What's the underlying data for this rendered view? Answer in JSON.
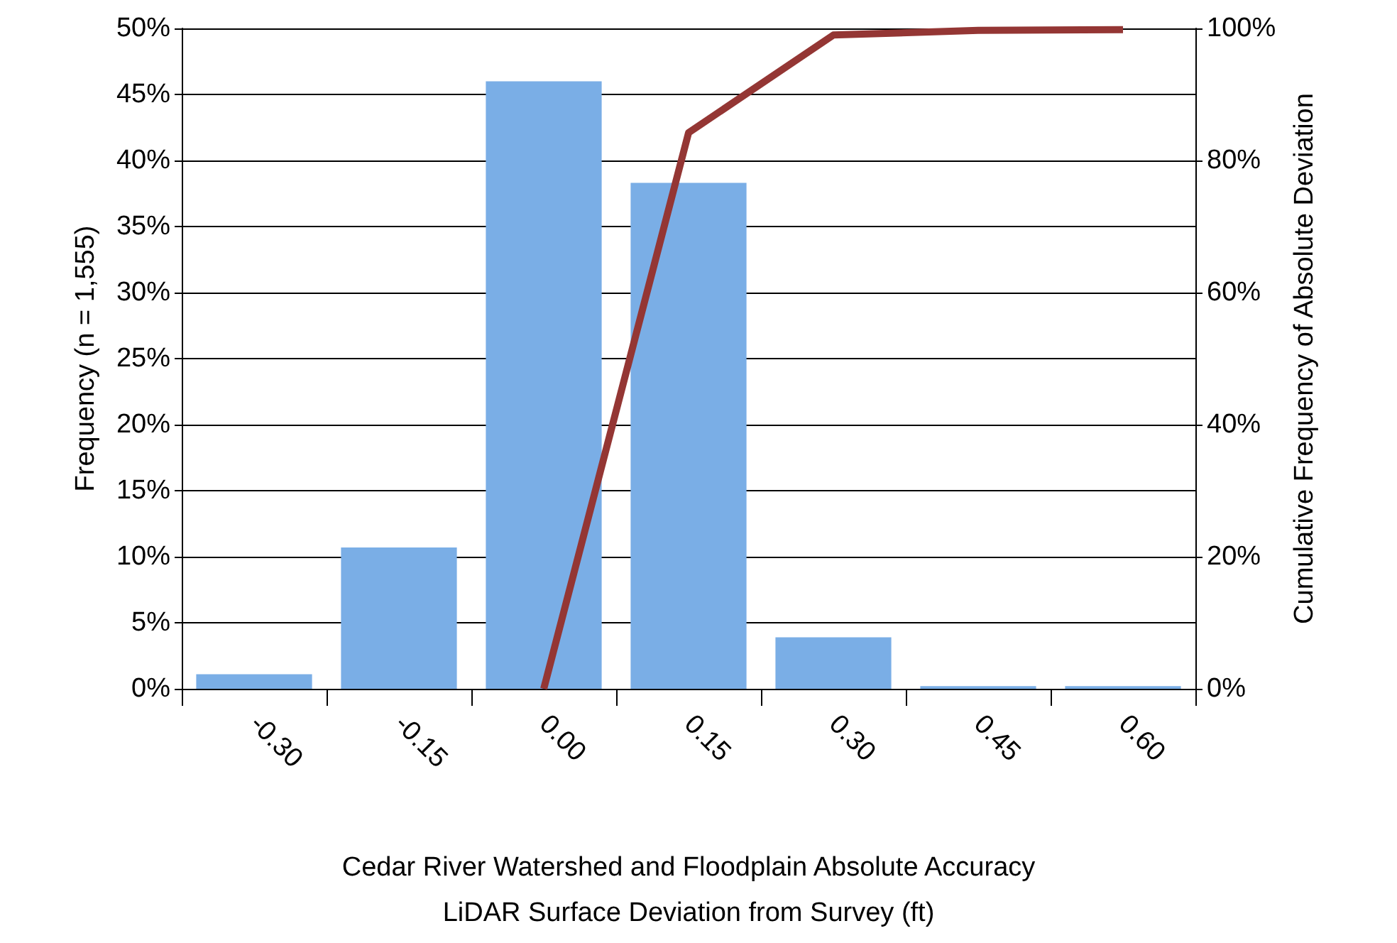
{
  "chart_data": {
    "type": "bar",
    "xlabel": "Cedar River Watershed and Floodplain Absolute Accuracy\nLiDAR Surface Deviation from Survey (ft)",
    "ylabel": "Frequency (n = 1,555)",
    "y2label": "Cumulative Frequency of Absolute Deviation",
    "categories": [
      "-0.30",
      "-0.15",
      "0.00",
      "0.15",
      "0.30",
      "0.45",
      "0.60"
    ],
    "series": [
      {
        "color": "#7aaee6",
        "values": [
          1.1,
          10.7,
          46.0,
          38.3,
          3.9,
          0.2,
          0.2
        ]
      },
      {
        "type": "line",
        "axis": "y2",
        "color": "#943634",
        "values": [
          null,
          null,
          0,
          84.2,
          99.0,
          99.7,
          99.8
        ]
      }
    ],
    "ylim": [
      0,
      50
    ],
    "yticks": [
      {
        "value": 0,
        "label": "0%"
      },
      {
        "value": 5,
        "label": "5%"
      },
      {
        "value": 10,
        "label": "10%"
      },
      {
        "value": 15,
        "label": "15%"
      },
      {
        "value": 20,
        "label": "20%"
      },
      {
        "value": 25,
        "label": "25%"
      },
      {
        "value": 30,
        "label": "30%"
      },
      {
        "value": 35,
        "label": "35%"
      },
      {
        "value": 40,
        "label": "40%"
      },
      {
        "value": 45,
        "label": "45%"
      },
      {
        "value": 50,
        "label": "50%"
      }
    ],
    "y2lim": [
      0,
      100
    ],
    "y2ticks": [
      {
        "value": 0,
        "label": "0%"
      },
      {
        "value": 20,
        "label": "20%"
      },
      {
        "value": 40,
        "label": "40%"
      },
      {
        "value": 60,
        "label": "60%"
      },
      {
        "value": 80,
        "label": "80%"
      },
      {
        "value": 100,
        "label": "100%"
      }
    ],
    "grid": "y",
    "marker": "none",
    "line_style": "solid"
  }
}
